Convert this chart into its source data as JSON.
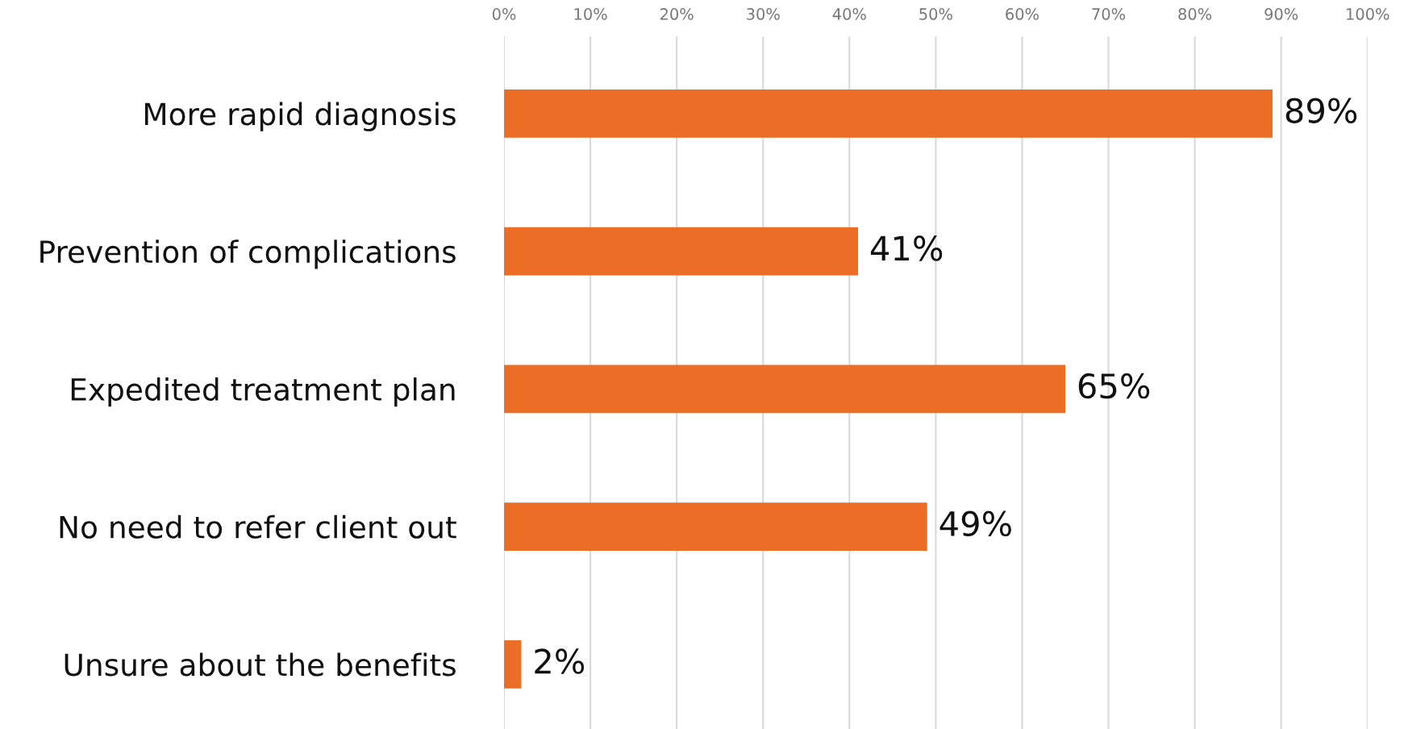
{
  "chart_data": {
    "type": "bar",
    "orientation": "horizontal",
    "categories": [
      "More rapid diagnosis",
      "Prevention of complications",
      "Expedited treatment plan",
      "No need to refer client out",
      "Unsure about the benefits"
    ],
    "values": [
      89,
      41,
      65,
      49,
      2
    ],
    "value_labels": [
      "89%",
      "41%",
      "65%",
      "49%",
      "2%"
    ],
    "color": "#ec6d25",
    "xlim": [
      0,
      100
    ],
    "xticks": [
      {
        "value": 0,
        "label": "0%"
      },
      {
        "value": 10,
        "label": "10%"
      },
      {
        "value": 20,
        "label": "20%"
      },
      {
        "value": 30,
        "label": "30%"
      },
      {
        "value": 40,
        "label": "40%"
      },
      {
        "value": 50,
        "label": "50%"
      },
      {
        "value": 60,
        "label": "60%"
      },
      {
        "value": 70,
        "label": "70%"
      },
      {
        "value": 80,
        "label": "80%"
      },
      {
        "value": 90,
        "label": "90%"
      },
      {
        "value": 100,
        "label": "100%"
      }
    ],
    "grid": "x"
  }
}
